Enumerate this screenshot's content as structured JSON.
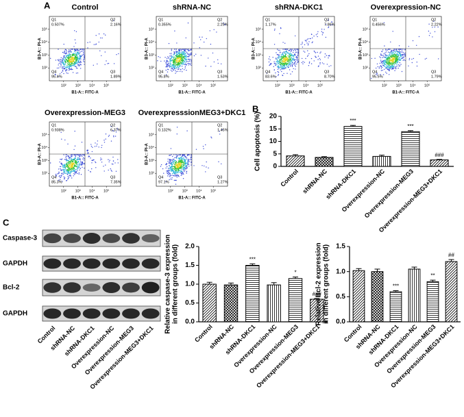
{
  "panel_labels": {
    "A": "A",
    "B": "B",
    "C": "C"
  },
  "chart_data": [
    {
      "type": "flow",
      "title": "Control",
      "xlabel": "B1-A:: FITC-A",
      "ylabel": "B3-A:: PI-A",
      "log_scale": true,
      "xlim": [
        10,
        1000000
      ],
      "ylim": [
        10,
        1000000
      ],
      "xticks": [
        {
          "value": 100,
          "label": "10²"
        },
        {
          "value": 1000,
          "label": "10³"
        },
        {
          "value": 10000,
          "label": "10⁴"
        },
        {
          "value": 100000,
          "label": "10⁵"
        }
      ],
      "yticks": [
        {
          "value": 100,
          "label": "10²"
        },
        {
          "value": 1000,
          "label": "10³"
        },
        {
          "value": 10000,
          "label": "10⁴"
        },
        {
          "value": 100000,
          "label": "10⁵"
        }
      ],
      "categories": [
        "Q1",
        "Q2",
        "Q3",
        "Q4"
      ],
      "values": [
        0.507,
        2.16,
        1.89,
        95.4
      ],
      "value_labels": [
        "0.507%",
        "2.16%",
        "1.89%",
        "95.4%"
      ]
    },
    {
      "type": "flow",
      "title": "shRNA-NC",
      "xlabel": "B1-A:: FITC-A",
      "ylabel": "B3-A:: PI-A",
      "log_scale": true,
      "xlim": [
        10,
        1000000
      ],
      "ylim": [
        10,
        1000000
      ],
      "xticks": [
        {
          "value": 100,
          "label": "10²"
        },
        {
          "value": 1000,
          "label": "10³"
        },
        {
          "value": 10000,
          "label": "10⁴"
        },
        {
          "value": 100000,
          "label": "10⁵"
        }
      ],
      "yticks": [
        {
          "value": 100,
          "label": "10²"
        },
        {
          "value": 1000,
          "label": "10³"
        },
        {
          "value": 10000,
          "label": "10⁴"
        },
        {
          "value": 100000,
          "label": "10⁵"
        }
      ],
      "categories": [
        "Q1",
        "Q2",
        "Q3",
        "Q4"
      ],
      "values": [
        0.355,
        2.29,
        1.53,
        95.8
      ],
      "value_labels": [
        "0.355%",
        "2.29%",
        "1.53%",
        "95.8%"
      ]
    },
    {
      "type": "flow",
      "title": "shRNA-DKC1",
      "xlabel": "B1-A:: FITC-A",
      "ylabel": "B3-A:: PI-A",
      "log_scale": true,
      "xlim": [
        10,
        1000000
      ],
      "ylim": [
        10,
        1000000
      ],
      "xticks": [
        {
          "value": 100,
          "label": "10²"
        },
        {
          "value": 1000,
          "label": "10³"
        },
        {
          "value": 10000,
          "label": "10⁴"
        },
        {
          "value": 100000,
          "label": "10⁵"
        }
      ],
      "yticks": [
        {
          "value": 100,
          "label": "10²"
        },
        {
          "value": 1000,
          "label": "10³"
        },
        {
          "value": 10000,
          "label": "10⁴"
        },
        {
          "value": 100000,
          "label": "10⁵"
        }
      ],
      "categories": [
        "Q1",
        "Q2",
        "Q3",
        "Q4"
      ],
      "values": [
        1.17,
        7.86,
        8.7,
        83.6
      ],
      "value_labels": [
        "1.17%",
        "7.86%",
        "8.70%",
        "83.6%"
      ]
    },
    {
      "type": "flow",
      "title": "Overexpression-NC",
      "xlabel": "B1-A:: FITC-A",
      "ylabel": "B3-A:: PI-A",
      "log_scale": true,
      "xlim": [
        10,
        1000000
      ],
      "ylim": [
        10,
        1000000
      ],
      "xticks": [
        {
          "value": 100,
          "label": "10²"
        },
        {
          "value": 1000,
          "label": "10³"
        },
        {
          "value": 10000,
          "label": "10⁴"
        },
        {
          "value": 100000,
          "label": "10⁵"
        }
      ],
      "yticks": [
        {
          "value": 100,
          "label": "10²"
        },
        {
          "value": 1000,
          "label": "10³"
        },
        {
          "value": 10000,
          "label": "10⁴"
        },
        {
          "value": 100000,
          "label": "10⁵"
        }
      ],
      "categories": [
        "Q1",
        "Q2",
        "Q3",
        "Q4"
      ],
      "values": [
        0.456,
        2.22,
        1.79,
        95.5
      ],
      "value_labels": [
        "0.456%",
        "2.22%",
        "1.79%",
        "95.5%"
      ]
    },
    {
      "type": "flow",
      "title": "Overexpression-MEG3",
      "xlabel": "B1-A:: FITC-A",
      "ylabel": "B3-A:: PI-A",
      "log_scale": true,
      "xlim": [
        10,
        1000000
      ],
      "ylim": [
        10,
        1000000
      ],
      "xticks": [
        {
          "value": 100,
          "label": "10²"
        },
        {
          "value": 1000,
          "label": "10³"
        },
        {
          "value": 10000,
          "label": "10⁴"
        },
        {
          "value": 100000,
          "label": "10⁵"
        }
      ],
      "yticks": [
        {
          "value": 100,
          "label": "10²"
        },
        {
          "value": 1000,
          "label": "10³"
        },
        {
          "value": 10000,
          "label": "10⁴"
        },
        {
          "value": 100000,
          "label": "10⁵"
        }
      ],
      "categories": [
        "Q1",
        "Q2",
        "Q3",
        "Q4"
      ],
      "values": [
        0.938,
        6.37,
        7.35,
        85.3
      ],
      "value_labels": [
        "0.938%",
        "6.37%",
        "7.35%",
        "85.3%"
      ]
    },
    {
      "type": "flow",
      "title": "OverexpresssionMEG3+DKC1",
      "xlabel": "B1-A:: FITC-A",
      "ylabel": "B3-A:: PI-A",
      "log_scale": true,
      "xlim": [
        10,
        1000000
      ],
      "ylim": [
        10,
        1000000
      ],
      "xticks": [
        {
          "value": 100,
          "label": "10²"
        },
        {
          "value": 1000,
          "label": "10³"
        },
        {
          "value": 10000,
          "label": "10⁴"
        },
        {
          "value": 100000,
          "label": "10⁵"
        }
      ],
      "yticks": [
        {
          "value": 100,
          "label": "10²"
        },
        {
          "value": 1000,
          "label": "10³"
        },
        {
          "value": 10000,
          "label": "10⁴"
        },
        {
          "value": 100000,
          "label": "10⁵"
        }
      ],
      "categories": [
        "Q1",
        "Q2",
        "Q3",
        "Q4"
      ],
      "values": [
        0.132,
        1.45,
        1.27,
        97.1
      ],
      "value_labels": [
        "0.132%",
        "1.45%",
        "1.27%",
        "97.1%"
      ]
    },
    {
      "type": "bar",
      "ylabel": [
        "Cell apoptosis (%)"
      ],
      "categories": [
        "Control",
        "shRNA-NC",
        "shRNA-DKC1",
        "Overexpression-NC",
        "Overexpression-MEG3",
        "Overexpression-MEG3+DKC1"
      ],
      "values": [
        4.2,
        3.6,
        16.0,
        4.0,
        13.9,
        2.6
      ],
      "errors": [
        0.5,
        0.3,
        0.4,
        0.5,
        0.4,
        0.2
      ],
      "annotations": [
        null,
        null,
        "***",
        null,
        "***",
        "###"
      ],
      "patterns": [
        "diagonal",
        "crosshatch",
        "horizontal",
        "vertical",
        "horizontal",
        "diagonal"
      ],
      "ylim": [
        0,
        20
      ],
      "yticks": [
        0,
        5,
        10,
        15,
        20
      ]
    },
    {
      "type": "bar",
      "ylabel": [
        "Relative caspase-3 expression",
        "in different groups (fold)"
      ],
      "categories": [
        "Control",
        "shRNA-NC",
        "shRNA-DKC1",
        "Overexpression-NC",
        "Overexpression-MEG3",
        "Overexpression-MEG3+DKC1"
      ],
      "values": [
        1.0,
        0.98,
        1.5,
        0.98,
        1.15,
        0.6
      ],
      "errors": [
        0.05,
        0.05,
        0.04,
        0.06,
        0.04,
        0.02
      ],
      "annotations": [
        null,
        null,
        "***",
        null,
        "*",
        "###"
      ],
      "patterns": [
        "diagonal",
        "crosshatch",
        "horizontal",
        "vertical",
        "horizontal",
        "diagonal"
      ],
      "ylim": [
        0,
        2
      ],
      "yticks": [
        {
          "value": 0,
          "label": "0.0"
        },
        0.5,
        {
          "value": 1,
          "label": "1.0"
        },
        1.5,
        {
          "value": 2,
          "label": "2.0"
        }
      ]
    },
    {
      "type": "bar",
      "ylabel": [
        "Relative Bcl-2 expression",
        "in different groups (fold)"
      ],
      "categories": [
        "Control",
        "shRNA-NC",
        "shRNA-DKC1",
        "Overexpression-NC",
        "Overexpression-MEG3",
        "Overexpression-MEG3+DKC1"
      ],
      "values": [
        1.02,
        1.0,
        0.6,
        1.05,
        0.8,
        1.2
      ],
      "errors": [
        0.04,
        0.05,
        0.02,
        0.04,
        0.03,
        0.04
      ],
      "annotations": [
        null,
        null,
        "***",
        null,
        "**",
        "##"
      ],
      "patterns": [
        "diagonal",
        "crosshatch",
        "horizontal",
        "vertical",
        "horizontal",
        "diagonal"
      ],
      "ylim": [
        0,
        1.5
      ],
      "yticks": [
        {
          "value": 0,
          "label": "0.0"
        },
        0.5,
        {
          "value": 1,
          "label": "1.0"
        },
        1.5
      ]
    }
  ],
  "western_blot": {
    "rows": [
      "Caspase-3",
      "GAPDH",
      "Bcl-2",
      "GAPDH"
    ],
    "lanes": [
      "Control",
      "shRNA-NC",
      "shRNA-DKC1",
      "Overexpression-NC",
      "Overexpression-MEG3",
      "Overexpression-MEG3+DKC1"
    ]
  }
}
